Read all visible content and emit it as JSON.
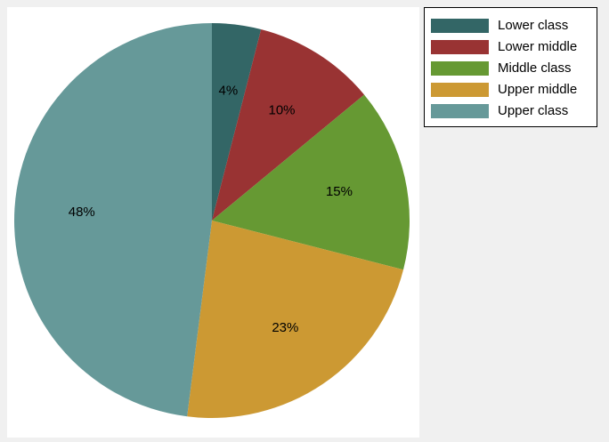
{
  "chart_data": {
    "type": "pie",
    "categories": [
      "Lower class",
      "Lower middle",
      "Middle class",
      "Upper middle",
      "Upper class"
    ],
    "values": [
      4,
      10,
      15,
      23,
      48
    ],
    "value_labels": [
      "4%",
      "10%",
      "15%",
      "23%",
      "48%"
    ],
    "colors": [
      "#336666",
      "#993333",
      "#669933",
      "#cc9933",
      "#669999"
    ],
    "legend": "top-right"
  }
}
